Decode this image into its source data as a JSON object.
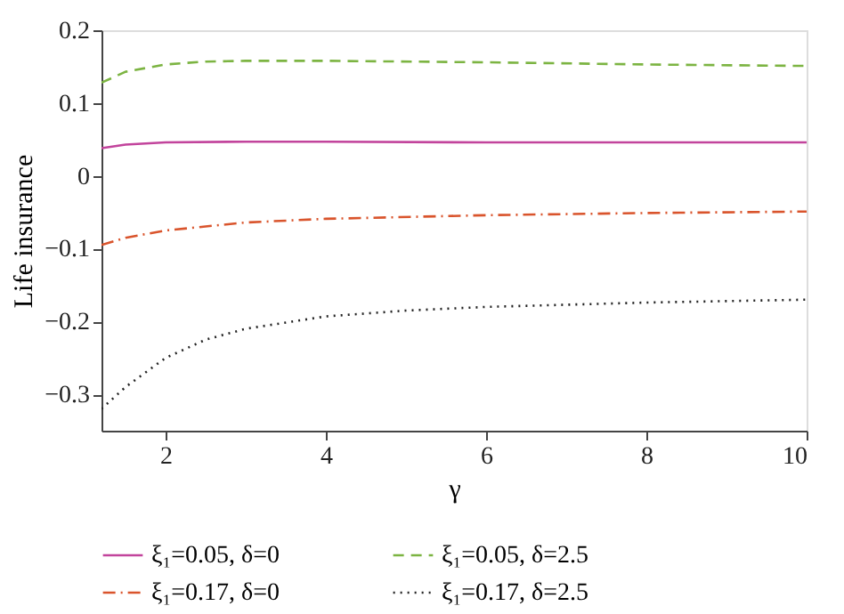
{
  "chart_data": {
    "type": "line",
    "xlabel": "γ",
    "ylabel": "Life insurance",
    "xlim": [
      1.2,
      10
    ],
    "xticks": [
      2,
      4,
      6,
      8,
      10
    ],
    "ylim": [
      -0.35,
      0.2
    ],
    "yticks": [
      -0.3,
      -0.2,
      -0.1,
      0,
      0.1,
      0.2
    ],
    "grid": false,
    "legend": "bottom",
    "marker": "none",
    "series": [
      {
        "name": "ξ₁=0.05, δ=0",
        "color": "#c2449c",
        "line_style": "solid",
        "x": [
          1.2,
          1.5,
          2,
          3,
          4,
          6,
          8,
          10
        ],
        "values": [
          0.038,
          0.043,
          0.046,
          0.047,
          0.047,
          0.046,
          0.046,
          0.046
        ]
      },
      {
        "name": "ξ₁=0.05, δ=2.5",
        "color": "#7cb442",
        "line_style": "dashed",
        "x": [
          1.2,
          1.5,
          2,
          2.5,
          3,
          4,
          6,
          8,
          10
        ],
        "values": [
          0.128,
          0.143,
          0.153,
          0.157,
          0.158,
          0.158,
          0.156,
          0.153,
          0.151
        ]
      },
      {
        "name": "ξ₁=0.17, δ=0",
        "color": "#d9542c",
        "line_style": "dashdot",
        "x": [
          1.2,
          1.5,
          2,
          3,
          4,
          6,
          8,
          10
        ],
        "values": [
          -0.095,
          -0.085,
          -0.075,
          -0.064,
          -0.059,
          -0.054,
          -0.051,
          -0.049
        ]
      },
      {
        "name": "ξ₁=0.17, δ=2.5",
        "color": "#222222",
        "line_style": "dotted",
        "x": [
          1.2,
          1.5,
          2,
          2.5,
          3,
          4,
          5,
          6,
          8,
          10
        ],
        "values": [
          -0.32,
          -0.29,
          -0.25,
          -0.225,
          -0.21,
          -0.193,
          -0.185,
          -0.18,
          -0.174,
          -0.17
        ]
      }
    ]
  }
}
